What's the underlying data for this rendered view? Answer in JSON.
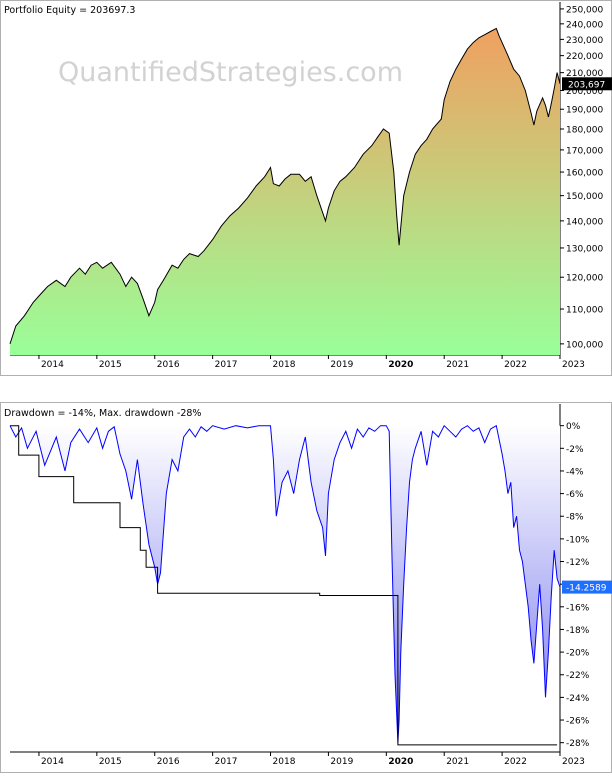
{
  "equity": {
    "header": "Portfolio Equity = 203697.3",
    "watermark": "QuantifiedStrategies.com",
    "last_value_label": "203,697",
    "colors": {
      "gradient_top": "#f0a060",
      "gradient_bottom": "#99ff99",
      "line": "#000000",
      "last_tag_bg": "#000000"
    }
  },
  "drawdown": {
    "header": "Drawdown = -14%, Max. drawdown -28%",
    "last_value_label": "-14.2589",
    "colors": {
      "line": "#0000ff",
      "fill_top": "#ffffff",
      "fill_bottom": "#7777ee",
      "maxdd": "#000000",
      "last_tag_bg": "#1e6fff"
    }
  },
  "chart_data": [
    {
      "type": "area",
      "title": "Portfolio Equity = 203697.3",
      "x_tick_labels": [
        "2014",
        "2015",
        "2016",
        "2017",
        "2018",
        "2019",
        "2020",
        "2021",
        "2022",
        "2023"
      ],
      "y_tick_labels": [
        "100,000",
        "110,000",
        "120,000",
        "130,000",
        "140,000",
        "150,000",
        "160,000",
        "170,000",
        "180,000",
        "190,000",
        "200,000",
        "210,000",
        "220,000",
        "230,000",
        "240,000",
        "250,000"
      ],
      "ylim": [
        97000,
        252000
      ],
      "y_scale": "log",
      "xlim": [
        2013.5,
        2023.0
      ],
      "series": [
        {
          "x": [
            2013.5,
            2013.6,
            2013.75,
            2013.9,
            2014.0,
            2014.15,
            2014.3,
            2014.45,
            2014.55,
            2014.7,
            2014.8,
            2014.9,
            2015.0,
            2015.1,
            2015.25,
            2015.4,
            2015.5,
            2015.6,
            2015.7,
            2015.8,
            2015.9,
            2016.0,
            2016.05,
            2016.15,
            2016.3,
            2016.4,
            2016.5,
            2016.6,
            2016.75,
            2016.85,
            2017.0,
            2017.15,
            2017.3,
            2017.45,
            2017.6,
            2017.75,
            2017.9,
            2018.0,
            2018.05,
            2018.15,
            2018.25,
            2018.35,
            2018.5,
            2018.6,
            2018.7,
            2018.8,
            2018.95,
            2019.0,
            2019.1,
            2019.2,
            2019.3,
            2019.45,
            2019.6,
            2019.75,
            2019.85,
            2019.95,
            2020.05,
            2020.13,
            2020.18,
            2020.22,
            2020.3,
            2020.4,
            2020.5,
            2020.6,
            2020.7,
            2020.8,
            2020.95,
            2021.0,
            2021.1,
            2021.2,
            2021.3,
            2021.4,
            2021.5,
            2021.6,
            2021.7,
            2021.8,
            2021.9,
            2021.95,
            2022.0,
            2022.1,
            2022.2,
            2022.3,
            2022.4,
            2022.5,
            2022.55,
            2022.6,
            2022.7,
            2022.75,
            2022.8,
            2022.85,
            2022.9,
            2022.95,
            2023.0
          ],
          "y": [
            100000,
            105000,
            108000,
            112000,
            114000,
            117000,
            119000,
            117000,
            120000,
            123000,
            121000,
            124000,
            125000,
            123000,
            125000,
            121000,
            117000,
            120000,
            118000,
            113000,
            108000,
            112000,
            116000,
            119000,
            124000,
            123000,
            126000,
            128000,
            127000,
            129000,
            133000,
            138000,
            142000,
            145000,
            149000,
            154000,
            158000,
            162000,
            155000,
            154000,
            157000,
            159000,
            159000,
            156000,
            158000,
            150000,
            140000,
            145000,
            152000,
            156000,
            158000,
            162000,
            168000,
            172000,
            176000,
            180000,
            178000,
            160000,
            142000,
            131000,
            150000,
            160000,
            168000,
            172000,
            175000,
            180000,
            185000,
            195000,
            205000,
            212000,
            218000,
            224000,
            228000,
            231000,
            233000,
            235000,
            237000,
            232000,
            228000,
            220000,
            212000,
            208000,
            200000,
            188000,
            182000,
            189000,
            196000,
            192000,
            186000,
            193000,
            201000,
            210000,
            203697
          ]
        }
      ]
    },
    {
      "type": "area",
      "title": "Drawdown = -14%, Max. drawdown -28%",
      "x_tick_labels": [
        "2014",
        "2015",
        "2016",
        "2017",
        "2018",
        "2019",
        "2020",
        "2021",
        "2022",
        "2023"
      ],
      "y_tick_labels": [
        "0%",
        "-2%",
        "-4%",
        "-6%",
        "-8%",
        "-10%",
        "-12%",
        "-14%",
        "-16%",
        "-18%",
        "-20%",
        "-22%",
        "-24%",
        "-26%",
        "-28%"
      ],
      "ylim": [
        -29,
        0.5
      ],
      "xlim": [
        2013.5,
        2023.0
      ],
      "series": [
        {
          "name": "Drawdown",
          "x": [
            2013.5,
            2013.6,
            2013.7,
            2013.8,
            2013.95,
            2014.1,
            2014.3,
            2014.45,
            2014.55,
            2014.7,
            2014.85,
            2015.0,
            2015.1,
            2015.2,
            2015.3,
            2015.4,
            2015.5,
            2015.6,
            2015.7,
            2015.8,
            2015.9,
            2016.0,
            2016.05,
            2016.1,
            2016.2,
            2016.3,
            2016.4,
            2016.5,
            2016.6,
            2016.7,
            2016.8,
            2016.9,
            2017.0,
            2017.2,
            2017.4,
            2017.6,
            2017.8,
            2018.0,
            2018.05,
            2018.1,
            2018.2,
            2018.3,
            2018.4,
            2018.5,
            2018.6,
            2018.7,
            2018.8,
            2018.9,
            2018.95,
            2019.0,
            2019.1,
            2019.2,
            2019.3,
            2019.4,
            2019.5,
            2019.6,
            2019.7,
            2019.8,
            2019.9,
            2020.0,
            2020.05,
            2020.1,
            2020.15,
            2020.2,
            2020.22,
            2020.25,
            2020.3,
            2020.35,
            2020.4,
            2020.45,
            2020.5,
            2020.6,
            2020.7,
            2020.8,
            2020.9,
            2021.0,
            2021.1,
            2021.2,
            2021.3,
            2021.4,
            2021.5,
            2021.6,
            2021.7,
            2021.8,
            2021.9,
            2022.0,
            2022.05,
            2022.1,
            2022.15,
            2022.2,
            2022.25,
            2022.3,
            2022.35,
            2022.4,
            2022.45,
            2022.5,
            2022.55,
            2022.6,
            2022.65,
            2022.7,
            2022.75,
            2022.8,
            2022.85,
            2022.9,
            2022.95,
            2023.0
          ],
          "y": [
            0,
            -1.0,
            -0.2,
            -2.0,
            -0.5,
            -3.5,
            -1.0,
            -4.0,
            -1.5,
            -0.3,
            -1.5,
            -0.2,
            -2.0,
            -0.5,
            -0.1,
            -2.5,
            -4.0,
            -6.5,
            -3.0,
            -7.0,
            -10.5,
            -12.5,
            -14.0,
            -13.0,
            -6.0,
            -3.0,
            -4.0,
            -1.0,
            -0.3,
            -1.0,
            -0.1,
            -0.5,
            0,
            -0.3,
            0,
            -0.2,
            0,
            0,
            -3.0,
            -8.0,
            -5.0,
            -4.0,
            -6.0,
            -3.0,
            -1.0,
            -5.0,
            -7.5,
            -9.0,
            -11.5,
            -6.0,
            -3.0,
            -1.5,
            -0.5,
            -2.0,
            -0.3,
            -1.0,
            -0.2,
            -0.5,
            0,
            0,
            -0.5,
            -12.0,
            -22.0,
            -28.0,
            -26.0,
            -20.0,
            -14.0,
            -9.0,
            -5.0,
            -3.0,
            -2.0,
            -0.5,
            -3.5,
            -0.5,
            -1.0,
            0,
            -0.5,
            -1.0,
            -0.3,
            0,
            -0.5,
            -0.2,
            -1.5,
            -0.3,
            0,
            -2.5,
            -4.0,
            -6.0,
            -5.0,
            -9.0,
            -8.0,
            -11.0,
            -12.0,
            -14.0,
            -16.0,
            -19.0,
            -21.0,
            -17.5,
            -14.0,
            -18.0,
            -24.0,
            -20.0,
            -15.0,
            -11.0,
            -13.5,
            -14.2589
          ]
        },
        {
          "name": "Max. drawdown",
          "x": [
            2013.5,
            2013.65,
            2013.65,
            2014.0,
            2014.0,
            2014.6,
            2014.6,
            2015.4,
            2015.4,
            2015.75,
            2015.75,
            2015.85,
            2015.85,
            2016.05,
            2016.05,
            2018.85,
            2018.85,
            2020.2,
            2020.2,
            2022.95
          ],
          "y": [
            0,
            0,
            -2.6,
            -2.6,
            -4.5,
            -4.5,
            -6.8,
            -6.8,
            -9.0,
            -9.0,
            -11.0,
            -11.0,
            -12.5,
            -12.5,
            -14.8,
            -14.8,
            -15.0,
            -15.0,
            -28.2,
            -28.2
          ]
        }
      ]
    }
  ]
}
